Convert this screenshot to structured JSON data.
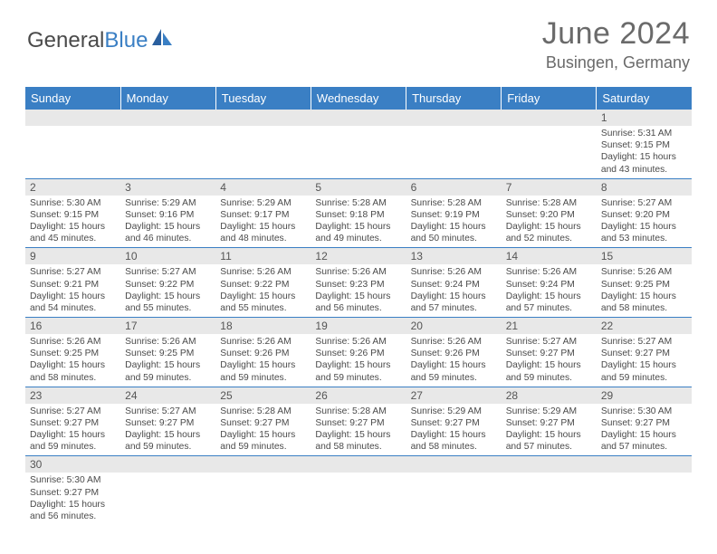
{
  "logo": {
    "text1": "General",
    "text2": "Blue"
  },
  "title": "June 2024",
  "location": "Busingen, Germany",
  "colors": {
    "header_bg": "#3a7fc4",
    "header_fg": "#ffffff",
    "daynum_bg": "#e8e8e8",
    "text": "#4a4a4a",
    "rule": "#3a7fc4"
  },
  "weekdays": [
    "Sunday",
    "Monday",
    "Tuesday",
    "Wednesday",
    "Thursday",
    "Friday",
    "Saturday"
  ],
  "weeks": [
    [
      {
        "n": "",
        "sr": "",
        "ss": "",
        "dl": ""
      },
      {
        "n": "",
        "sr": "",
        "ss": "",
        "dl": ""
      },
      {
        "n": "",
        "sr": "",
        "ss": "",
        "dl": ""
      },
      {
        "n": "",
        "sr": "",
        "ss": "",
        "dl": ""
      },
      {
        "n": "",
        "sr": "",
        "ss": "",
        "dl": ""
      },
      {
        "n": "",
        "sr": "",
        "ss": "",
        "dl": ""
      },
      {
        "n": "1",
        "sr": "Sunrise: 5:31 AM",
        "ss": "Sunset: 9:15 PM",
        "dl": "Daylight: 15 hours and 43 minutes."
      }
    ],
    [
      {
        "n": "2",
        "sr": "Sunrise: 5:30 AM",
        "ss": "Sunset: 9:15 PM",
        "dl": "Daylight: 15 hours and 45 minutes."
      },
      {
        "n": "3",
        "sr": "Sunrise: 5:29 AM",
        "ss": "Sunset: 9:16 PM",
        "dl": "Daylight: 15 hours and 46 minutes."
      },
      {
        "n": "4",
        "sr": "Sunrise: 5:29 AM",
        "ss": "Sunset: 9:17 PM",
        "dl": "Daylight: 15 hours and 48 minutes."
      },
      {
        "n": "5",
        "sr": "Sunrise: 5:28 AM",
        "ss": "Sunset: 9:18 PM",
        "dl": "Daylight: 15 hours and 49 minutes."
      },
      {
        "n": "6",
        "sr": "Sunrise: 5:28 AM",
        "ss": "Sunset: 9:19 PM",
        "dl": "Daylight: 15 hours and 50 minutes."
      },
      {
        "n": "7",
        "sr": "Sunrise: 5:28 AM",
        "ss": "Sunset: 9:20 PM",
        "dl": "Daylight: 15 hours and 52 minutes."
      },
      {
        "n": "8",
        "sr": "Sunrise: 5:27 AM",
        "ss": "Sunset: 9:20 PM",
        "dl": "Daylight: 15 hours and 53 minutes."
      }
    ],
    [
      {
        "n": "9",
        "sr": "Sunrise: 5:27 AM",
        "ss": "Sunset: 9:21 PM",
        "dl": "Daylight: 15 hours and 54 minutes."
      },
      {
        "n": "10",
        "sr": "Sunrise: 5:27 AM",
        "ss": "Sunset: 9:22 PM",
        "dl": "Daylight: 15 hours and 55 minutes."
      },
      {
        "n": "11",
        "sr": "Sunrise: 5:26 AM",
        "ss": "Sunset: 9:22 PM",
        "dl": "Daylight: 15 hours and 55 minutes."
      },
      {
        "n": "12",
        "sr": "Sunrise: 5:26 AM",
        "ss": "Sunset: 9:23 PM",
        "dl": "Daylight: 15 hours and 56 minutes."
      },
      {
        "n": "13",
        "sr": "Sunrise: 5:26 AM",
        "ss": "Sunset: 9:24 PM",
        "dl": "Daylight: 15 hours and 57 minutes."
      },
      {
        "n": "14",
        "sr": "Sunrise: 5:26 AM",
        "ss": "Sunset: 9:24 PM",
        "dl": "Daylight: 15 hours and 57 minutes."
      },
      {
        "n": "15",
        "sr": "Sunrise: 5:26 AM",
        "ss": "Sunset: 9:25 PM",
        "dl": "Daylight: 15 hours and 58 minutes."
      }
    ],
    [
      {
        "n": "16",
        "sr": "Sunrise: 5:26 AM",
        "ss": "Sunset: 9:25 PM",
        "dl": "Daylight: 15 hours and 58 minutes."
      },
      {
        "n": "17",
        "sr": "Sunrise: 5:26 AM",
        "ss": "Sunset: 9:25 PM",
        "dl": "Daylight: 15 hours and 59 minutes."
      },
      {
        "n": "18",
        "sr": "Sunrise: 5:26 AM",
        "ss": "Sunset: 9:26 PM",
        "dl": "Daylight: 15 hours and 59 minutes."
      },
      {
        "n": "19",
        "sr": "Sunrise: 5:26 AM",
        "ss": "Sunset: 9:26 PM",
        "dl": "Daylight: 15 hours and 59 minutes."
      },
      {
        "n": "20",
        "sr": "Sunrise: 5:26 AM",
        "ss": "Sunset: 9:26 PM",
        "dl": "Daylight: 15 hours and 59 minutes."
      },
      {
        "n": "21",
        "sr": "Sunrise: 5:27 AM",
        "ss": "Sunset: 9:27 PM",
        "dl": "Daylight: 15 hours and 59 minutes."
      },
      {
        "n": "22",
        "sr": "Sunrise: 5:27 AM",
        "ss": "Sunset: 9:27 PM",
        "dl": "Daylight: 15 hours and 59 minutes."
      }
    ],
    [
      {
        "n": "23",
        "sr": "Sunrise: 5:27 AM",
        "ss": "Sunset: 9:27 PM",
        "dl": "Daylight: 15 hours and 59 minutes."
      },
      {
        "n": "24",
        "sr": "Sunrise: 5:27 AM",
        "ss": "Sunset: 9:27 PM",
        "dl": "Daylight: 15 hours and 59 minutes."
      },
      {
        "n": "25",
        "sr": "Sunrise: 5:28 AM",
        "ss": "Sunset: 9:27 PM",
        "dl": "Daylight: 15 hours and 59 minutes."
      },
      {
        "n": "26",
        "sr": "Sunrise: 5:28 AM",
        "ss": "Sunset: 9:27 PM",
        "dl": "Daylight: 15 hours and 58 minutes."
      },
      {
        "n": "27",
        "sr": "Sunrise: 5:29 AM",
        "ss": "Sunset: 9:27 PM",
        "dl": "Daylight: 15 hours and 58 minutes."
      },
      {
        "n": "28",
        "sr": "Sunrise: 5:29 AM",
        "ss": "Sunset: 9:27 PM",
        "dl": "Daylight: 15 hours and 57 minutes."
      },
      {
        "n": "29",
        "sr": "Sunrise: 5:30 AM",
        "ss": "Sunset: 9:27 PM",
        "dl": "Daylight: 15 hours and 57 minutes."
      }
    ],
    [
      {
        "n": "30",
        "sr": "Sunrise: 5:30 AM",
        "ss": "Sunset: 9:27 PM",
        "dl": "Daylight: 15 hours and 56 minutes."
      },
      {
        "n": "",
        "sr": "",
        "ss": "",
        "dl": ""
      },
      {
        "n": "",
        "sr": "",
        "ss": "",
        "dl": ""
      },
      {
        "n": "",
        "sr": "",
        "ss": "",
        "dl": ""
      },
      {
        "n": "",
        "sr": "",
        "ss": "",
        "dl": ""
      },
      {
        "n": "",
        "sr": "",
        "ss": "",
        "dl": ""
      },
      {
        "n": "",
        "sr": "",
        "ss": "",
        "dl": ""
      }
    ]
  ]
}
